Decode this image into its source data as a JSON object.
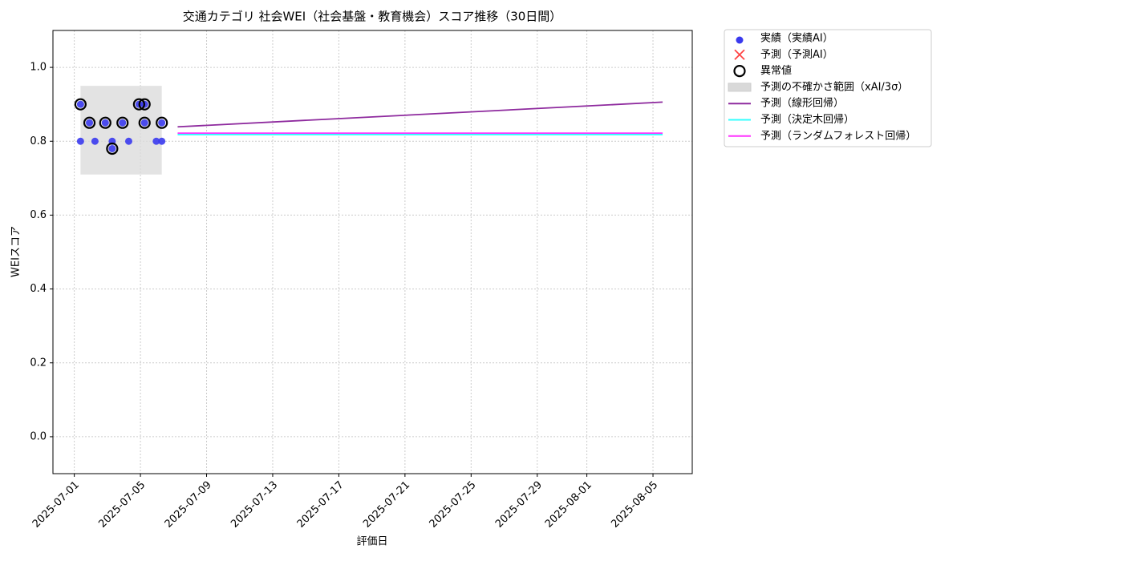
{
  "chart_data": {
    "type": "scatter",
    "title": "交通カテゴリ 社会WEI（社会基盤・教育機会）スコア推移（30日間）",
    "xlabel": "評価日",
    "ylabel": "WEIスコア",
    "xlim": [
      "2025-06-29T17:00",
      "2025-08-07T09:00"
    ],
    "ylim": [
      -0.1,
      1.1
    ],
    "xticks": [
      "2025-07-01",
      "2025-07-05",
      "2025-07-09",
      "2025-07-13",
      "2025-07-17",
      "2025-07-21",
      "2025-07-25",
      "2025-07-29",
      "2025-08-01",
      "2025-08-05"
    ],
    "yticks": [
      {
        "value": 0,
        "label": "0.0"
      },
      0.2,
      0.4,
      0.6,
      0.8,
      {
        "value": 1,
        "label": "1.0"
      }
    ],
    "grid": true,
    "legend": "outside upper right",
    "series": [
      {
        "name": "実績（実績AI）",
        "type": "scatter",
        "marker": "circle",
        "color": "#3a3aee",
        "x": [
          "2025-07-01T09:00",
          "2025-07-01T09:00",
          "2025-07-01T22:00",
          "2025-07-02T06:00",
          "2025-07-02T21:00",
          "2025-07-03T07:00",
          "2025-07-03T07:00",
          "2025-07-03T22:00",
          "2025-07-04T07:00",
          "2025-07-04T22:00",
          "2025-07-05T06:00",
          "2025-07-05T06:00",
          "2025-07-05T23:00",
          "2025-07-06T07:00",
          "2025-07-06T07:00"
        ],
        "values": [
          0.9,
          0.8,
          0.85,
          0.8,
          0.85,
          0.8,
          0.78,
          0.85,
          0.8,
          0.9,
          0.9,
          0.85,
          0.8,
          0.8,
          0.85
        ]
      },
      {
        "name": "予測（予測AI）",
        "type": "scatter",
        "marker": "x",
        "color": "#ff4444",
        "x": [],
        "values": []
      },
      {
        "name": "異常値",
        "type": "scatter",
        "marker": "ring",
        "color": "#000000",
        "x": [
          "2025-07-01T09:00",
          "2025-07-01T22:00",
          "2025-07-02T21:00",
          "2025-07-03T07:00",
          "2025-07-03T22:00",
          "2025-07-04T22:00",
          "2025-07-05T06:00",
          "2025-07-05T06:00",
          "2025-07-06T07:00"
        ],
        "values": [
          0.9,
          0.85,
          0.85,
          0.78,
          0.85,
          0.9,
          0.9,
          0.85,
          0.85
        ]
      },
      {
        "name": "予測の不確かさ範囲（xAI/3σ）",
        "type": "band",
        "color": "#d9d9d9",
        "x": [
          "2025-07-01T09:00",
          "2025-07-06T07:00"
        ],
        "lower": [
          0.71,
          0.71
        ],
        "upper": [
          0.95,
          0.95
        ]
      },
      {
        "name": "予測（線形回帰）",
        "type": "line",
        "color": "#8e2a9e",
        "x": [
          "2025-07-07T06:00",
          "2025-08-05T14:00"
        ],
        "values": [
          0.839,
          0.906
        ]
      },
      {
        "name": "予測（決定木回帰）",
        "type": "line",
        "color": "#33ffff",
        "x": [
          "2025-07-07T06:00",
          "2025-08-05T14:00"
        ],
        "values": [
          0.818,
          0.818
        ]
      },
      {
        "name": "予測（ランダムフォレスト回帰）",
        "type": "line",
        "color": "#ff33ff",
        "x": [
          "2025-07-07T06:00",
          "2025-08-05T14:00"
        ],
        "values": [
          0.822,
          0.822
        ]
      }
    ]
  }
}
